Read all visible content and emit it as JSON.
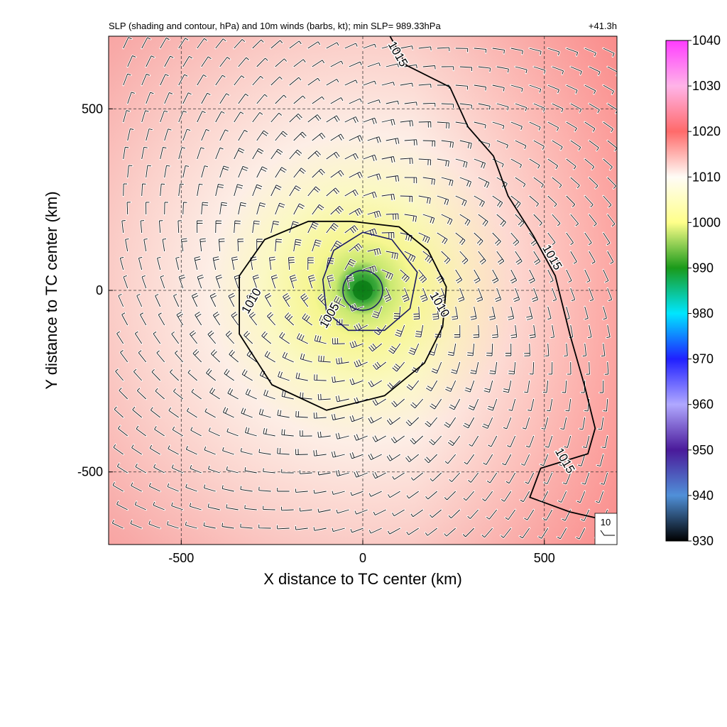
{
  "chart_data": {
    "type": "heatmap",
    "title": "SLP (shading and contour, hPa) and 10m winds (barbs, kt); min SLP= 989.33hPa",
    "time_label": "+41.3h",
    "xlabel": "X distance to TC center (km)",
    "ylabel": "Y distance to TC center (km)",
    "xlim": [
      -700,
      700
    ],
    "ylim": [
      -700,
      700
    ],
    "xticks": [
      -500,
      0,
      500
    ],
    "yticks": [
      -500,
      0,
      500
    ],
    "grid": "dashed",
    "field": "sea level pressure (hPa)",
    "min_slp": 989.33,
    "center": [
      0,
      0
    ],
    "contour_levels": [
      1005,
      1010,
      1015
    ],
    "contour_labels": [
      {
        "text": "1015",
        "x": 95,
        "y": 650
      },
      {
        "text": "1015",
        "x": 520,
        "y": 90
      },
      {
        "text": "1015",
        "x": 555,
        "y": -470
      },
      {
        "text": "1010",
        "x": -305,
        "y": -30
      },
      {
        "text": "1010",
        "x": 210,
        "y": -40
      },
      {
        "text": "1005",
        "x": -90,
        "y": -70
      }
    ],
    "contour_1005": [
      [
        0,
        160
      ],
      [
        80,
        140
      ],
      [
        150,
        50
      ],
      [
        130,
        -50
      ],
      [
        60,
        -110
      ],
      [
        -40,
        -110
      ],
      [
        -100,
        -60
      ],
      [
        -110,
        30
      ],
      [
        -80,
        110
      ]
    ],
    "contour_1010": [
      [
        -30,
        190
      ],
      [
        100,
        175
      ],
      [
        180,
        110
      ],
      [
        230,
        10
      ],
      [
        220,
        -100
      ],
      [
        170,
        -200
      ],
      [
        60,
        -290
      ],
      [
        -100,
        -330
      ],
      [
        -250,
        -260
      ],
      [
        -340,
        -120
      ],
      [
        -340,
        40
      ],
      [
        -270,
        140
      ],
      [
        -150,
        190
      ]
    ],
    "contour_1015": [
      [
        75,
        700
      ],
      [
        120,
        620
      ],
      [
        240,
        560
      ],
      [
        290,
        450
      ],
      [
        360,
        370
      ],
      [
        400,
        260
      ],
      [
        470,
        150
      ],
      [
        530,
        40
      ],
      [
        570,
        -120
      ],
      [
        610,
        -260
      ],
      [
        640,
        -380
      ],
      [
        620,
        -450
      ],
      [
        490,
        -490
      ],
      [
        460,
        -570
      ],
      [
        570,
        -610
      ],
      [
        700,
        -640
      ]
    ],
    "colorbar": {
      "ticks": [
        1040,
        1030,
        1020,
        1010,
        1000,
        990,
        980,
        970,
        960,
        950,
        940,
        930
      ],
      "colors": [
        "#ff3cff",
        "#ffb4e8",
        "#ff6a6a",
        "#fffcf6",
        "#ffff8a",
        "#1a9a1a",
        "#00e6ff",
        "#2020ff",
        "#b0a8ff",
        "#4a1a9a",
        "#5090d8",
        "#000000"
      ]
    },
    "wind_scale_label": "10",
    "units": {
      "pressure": "hPa",
      "wind": "kt"
    }
  }
}
